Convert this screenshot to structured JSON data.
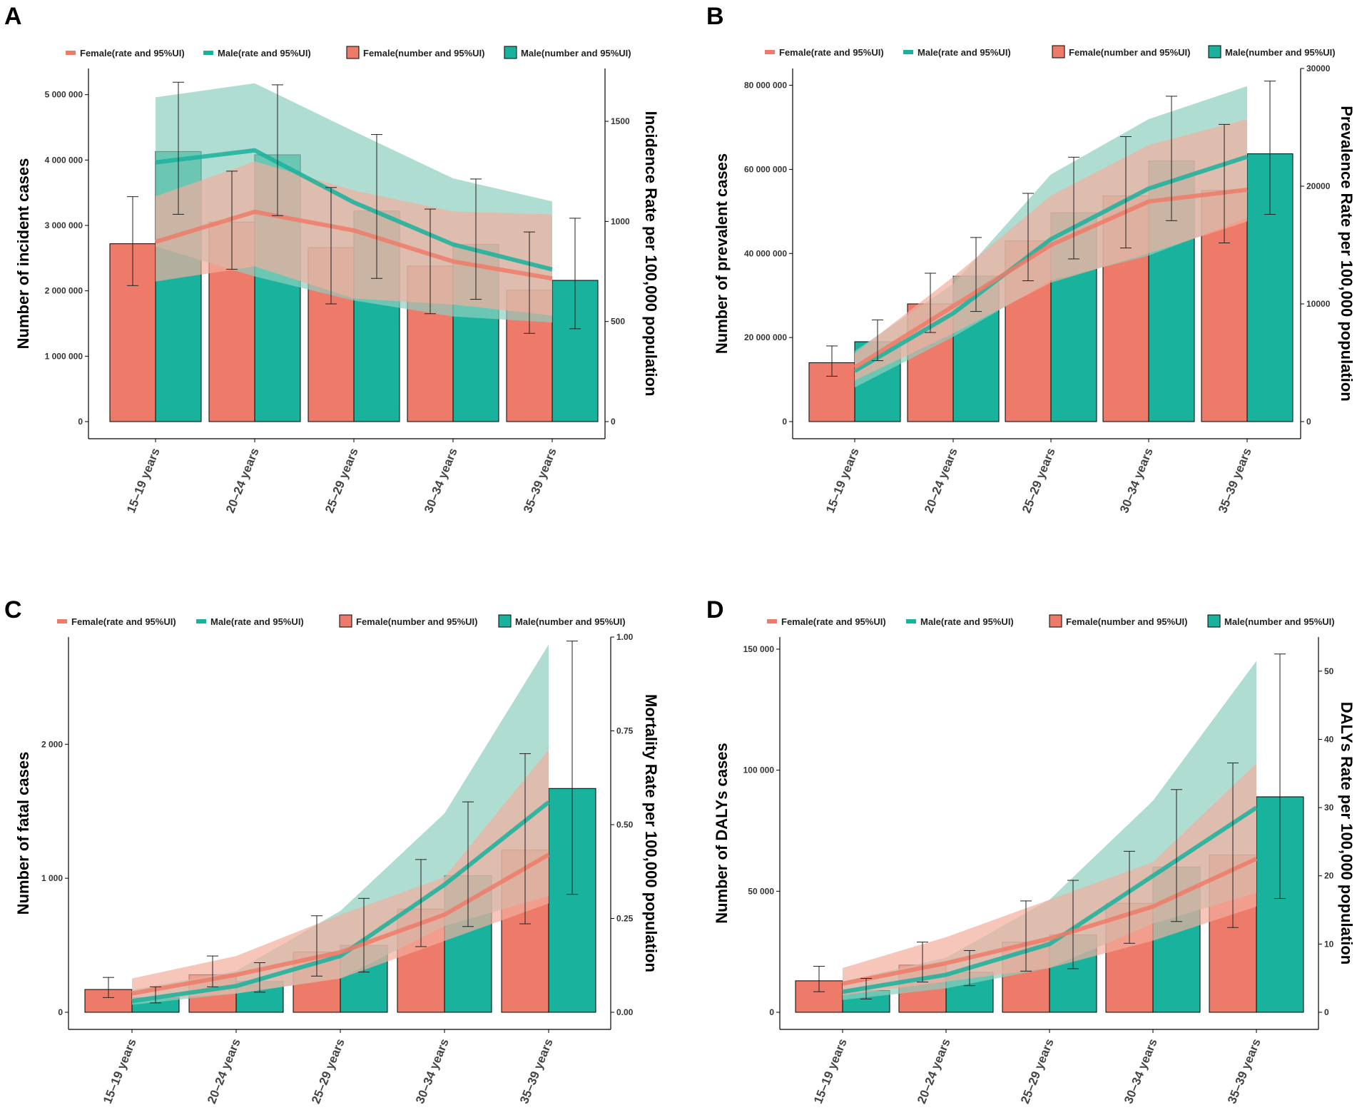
{
  "colors": {
    "female": "#EE7B69",
    "male": "#19B29C",
    "female_band": "#F2AE9E",
    "male_band": "#8FCFBF"
  },
  "chart_data": [
    {
      "panel": "A",
      "type": "bar",
      "legend": {
        "female_rate": "Female(rate and 95%UI)",
        "male_rate": "Male(rate and 95%UI)",
        "female_number": "Female(number and 95%UI)",
        "male_number": "Male(number and 95%UI)"
      },
      "categories": [
        "15–19 years",
        "20–24 years",
        "25–29 years",
        "30–34 years",
        "35–39 years"
      ],
      "ylabel_left": "Number of  incident cases",
      "ylabel_right": "Incidence Rate per 100,000 population",
      "left_ylim": [
        0,
        5400000
      ],
      "left_ticks": [
        {
          "value": 0,
          "label": "0"
        },
        {
          "value": 1000000,
          "label": "1 000 000"
        },
        {
          "value": 2000000,
          "label": "2 000 000"
        },
        {
          "value": 3000000,
          "label": "3 000 000"
        },
        {
          "value": 4000000,
          "label": "4 000 000"
        },
        {
          "value": 5000000,
          "label": "5 000 000"
        }
      ],
      "right_ylim": [
        0,
        1764
      ],
      "right_ticks": [
        {
          "value": 0,
          "label": "0"
        },
        {
          "value": 500,
          "label": "500"
        },
        {
          "value": 1000,
          "label": "1000"
        },
        {
          "value": 1500,
          "label": "1500"
        }
      ],
      "series_numbers": [
        {
          "name": "Female",
          "values": [
            2720000,
            3050000,
            2660000,
            2380000,
            2010000
          ],
          "lower": [
            2080000,
            2330000,
            1800000,
            1650000,
            1350000
          ],
          "upper": [
            3440000,
            3830000,
            3580000,
            3250000,
            2900000
          ]
        },
        {
          "name": "Male",
          "values": [
            4130000,
            4080000,
            3220000,
            2710000,
            2160000
          ],
          "lower": [
            3170000,
            3150000,
            2190000,
            1870000,
            1420000
          ],
          "upper": [
            5190000,
            5150000,
            4390000,
            3710000,
            3110000
          ]
        }
      ],
      "series_rates": [
        {
          "name": "Female",
          "values": [
            898,
            1048,
            955,
            800,
            715
          ],
          "lower": [
            700,
            775,
            615,
            585,
            530
          ],
          "upper": [
            1125,
            1300,
            1155,
            1050,
            1035
          ]
        },
        {
          "name": "Male",
          "values": [
            1295,
            1355,
            1095,
            885,
            760
          ],
          "lower": [
            875,
            725,
            605,
            525,
            495
          ],
          "upper": [
            1620,
            1690,
            1450,
            1215,
            1100
          ]
        }
      ]
    },
    {
      "panel": "B",
      "type": "bar",
      "legend": {
        "female_rate": "Female(rate and 95%UI)",
        "male_rate": "Male(rate and 95%UI)",
        "female_number": "Female(number and 95%UI)",
        "male_number": "Male(number and 95%UI)"
      },
      "categories": [
        "15–19 years",
        "20–24 years",
        "25–29 years",
        "30–34 years",
        "35–39 years"
      ],
      "ylabel_left": "Number of  prevalent cases",
      "ylabel_right": "Prevalence Rate per 100,000 population",
      "left_ylim": [
        0,
        84000000
      ],
      "left_ticks": [
        {
          "value": 0,
          "label": "0"
        },
        {
          "value": 20000000,
          "label": "20 000 000"
        },
        {
          "value": 40000000,
          "label": "40 000 000"
        },
        {
          "value": 60000000,
          "label": "60 000 000"
        },
        {
          "value": 80000000,
          "label": "80 000 000"
        }
      ],
      "right_ylim": [
        0,
        30000
      ],
      "right_ticks": [
        {
          "value": 0,
          "label": "0"
        },
        {
          "value": 10000,
          "label": "10000"
        },
        {
          "value": 20000,
          "label": "20000"
        },
        {
          "value": 30000,
          "label": "30000"
        }
      ],
      "series_numbers": [
        {
          "name": "Female",
          "values": [
            14000000,
            28000000,
            43000000,
            53700000,
            55000000
          ],
          "lower": [
            10800000,
            21200000,
            33500000,
            41300000,
            42500000
          ],
          "upper": [
            18000000,
            35300000,
            54300000,
            67800000,
            70700000
          ]
        },
        {
          "name": "Male",
          "values": [
            19000000,
            34600000,
            49700000,
            62000000,
            63700000
          ],
          "lower": [
            14500000,
            26200000,
            38700000,
            47800000,
            49300000
          ],
          "upper": [
            24200000,
            43800000,
            62900000,
            77400000,
            81000000
          ]
        }
      ],
      "series_rates": [
        {
          "name": "Female",
          "values": [
            4600,
            9800,
            15000,
            18700,
            19700
          ],
          "lower": [
            3500,
            7500,
            11800,
            14300,
            17000
          ],
          "upper": [
            5800,
            12300,
            19200,
            23500,
            25700
          ]
        },
        {
          "name": "Male",
          "values": [
            4300,
            9200,
            15500,
            19800,
            22500
          ],
          "lower": [
            2900,
            7200,
            12000,
            14100,
            17300
          ],
          "upper": [
            6000,
            11700,
            21000,
            25700,
            28500
          ]
        }
      ]
    },
    {
      "panel": "C",
      "type": "bar",
      "legend": {
        "female_rate": "Female(rate and 95%UI)",
        "male_rate": "Male(rate and 95%UI)",
        "female_number": "Female(number and 95%UI)",
        "male_number": "Male(number and 95%UI)"
      },
      "categories": [
        "15–19 years",
        "20–24 years",
        "25–29 years",
        "30–34 years",
        "35–39 years"
      ],
      "ylabel_left": "Number of fatal cases",
      "ylabel_right": "Mortality Rate per 100,000 population",
      "left_ylim": [
        0,
        2800
      ],
      "left_ticks": [
        {
          "value": 0,
          "label": "0"
        },
        {
          "value": 1000,
          "label": "1 000"
        },
        {
          "value": 2000,
          "label": "2 000"
        }
      ],
      "right_ylim": [
        0,
        1.0
      ],
      "right_ticks": [
        {
          "value": 0,
          "label": "0.00"
        },
        {
          "value": 0.25,
          "label": "0.25"
        },
        {
          "value": 0.5,
          "label": "0.50"
        },
        {
          "value": 0.75,
          "label": "0.75"
        },
        {
          "value": 1.0,
          "label": "1.00"
        }
      ],
      "series_numbers": [
        {
          "name": "Female",
          "values": [
            170,
            280,
            450,
            770,
            1210
          ],
          "lower": [
            110,
            190,
            270,
            490,
            660
          ],
          "upper": [
            260,
            420,
            720,
            1140,
            1930
          ]
        },
        {
          "name": "Male",
          "values": [
            110,
            230,
            500,
            1020,
            1670
          ],
          "lower": [
            70,
            150,
            300,
            640,
            880
          ],
          "upper": [
            190,
            370,
            850,
            1570,
            2770
          ]
        }
      ],
      "series_rates": [
        {
          "name": "Female",
          "values": [
            0.05,
            0.1,
            0.16,
            0.26,
            0.42
          ],
          "lower": [
            0.03,
            0.05,
            0.09,
            0.19,
            0.29
          ],
          "upper": [
            0.09,
            0.15,
            0.26,
            0.36,
            0.7
          ]
        },
        {
          "name": "Male",
          "values": [
            0.03,
            0.07,
            0.15,
            0.34,
            0.56
          ],
          "lower": [
            0.02,
            0.05,
            0.09,
            0.23,
            0.31
          ],
          "upper": [
            0.06,
            0.11,
            0.27,
            0.53,
            0.98
          ]
        }
      ]
    },
    {
      "panel": "D",
      "type": "bar",
      "legend": {
        "female_rate": "Female(rate and 95%UI)",
        "male_rate": "Male(rate and 95%UI)",
        "female_number": "Female(number and 95%UI)",
        "male_number": "Male(number and 95%UI)"
      },
      "categories": [
        "15–19 years",
        "20–24 years",
        "25–29 years",
        "30–34 years",
        "35–39 years"
      ],
      "ylabel_left": "Number of DALYs cases",
      "ylabel_right": "DALYs Rate per 100,000 population",
      "left_ylim": [
        0,
        155000
      ],
      "left_ticks": [
        {
          "value": 0,
          "label": "0"
        },
        {
          "value": 50000,
          "label": "50 000"
        },
        {
          "value": 100000,
          "label": "100 000"
        },
        {
          "value": 150000,
          "label": "150 000"
        }
      ],
      "right_ylim": [
        0,
        55
      ],
      "right_ticks": [
        {
          "value": 0,
          "label": "0"
        },
        {
          "value": 10,
          "label": "10"
        },
        {
          "value": 20,
          "label": "20"
        },
        {
          "value": 30,
          "label": "30"
        },
        {
          "value": 40,
          "label": "40"
        },
        {
          "value": 50,
          "label": "50"
        }
      ],
      "series_numbers": [
        {
          "name": "Female",
          "values": [
            13000,
            19500,
            29000,
            45000,
            65000
          ],
          "lower": [
            8500,
            12500,
            17000,
            28500,
            35000
          ],
          "upper": [
            19000,
            29000,
            46000,
            66500,
            103000
          ]
        },
        {
          "name": "Male",
          "values": [
            9000,
            16500,
            32000,
            60000,
            89000
          ],
          "lower": [
            5500,
            11000,
            18000,
            37500,
            47000
          ],
          "upper": [
            14000,
            25500,
            54500,
            92000,
            148000
          ]
        }
      ],
      "series_rates": [
        {
          "name": "Female",
          "values": [
            4.2,
            7.2,
            10.8,
            15.5,
            22.5
          ],
          "lower": [
            2.5,
            4.5,
            6.5,
            10.5,
            15.5
          ],
          "upper": [
            6.5,
            11.0,
            16.5,
            22.0,
            36.5
          ]
        },
        {
          "name": "Male",
          "values": [
            3.0,
            5.5,
            10.0,
            20.0,
            30.0
          ],
          "lower": [
            1.8,
            3.5,
            6.5,
            13.0,
            17.5
          ],
          "upper": [
            4.5,
            8.0,
            16.5,
            31.0,
            51.5
          ]
        }
      ]
    }
  ]
}
